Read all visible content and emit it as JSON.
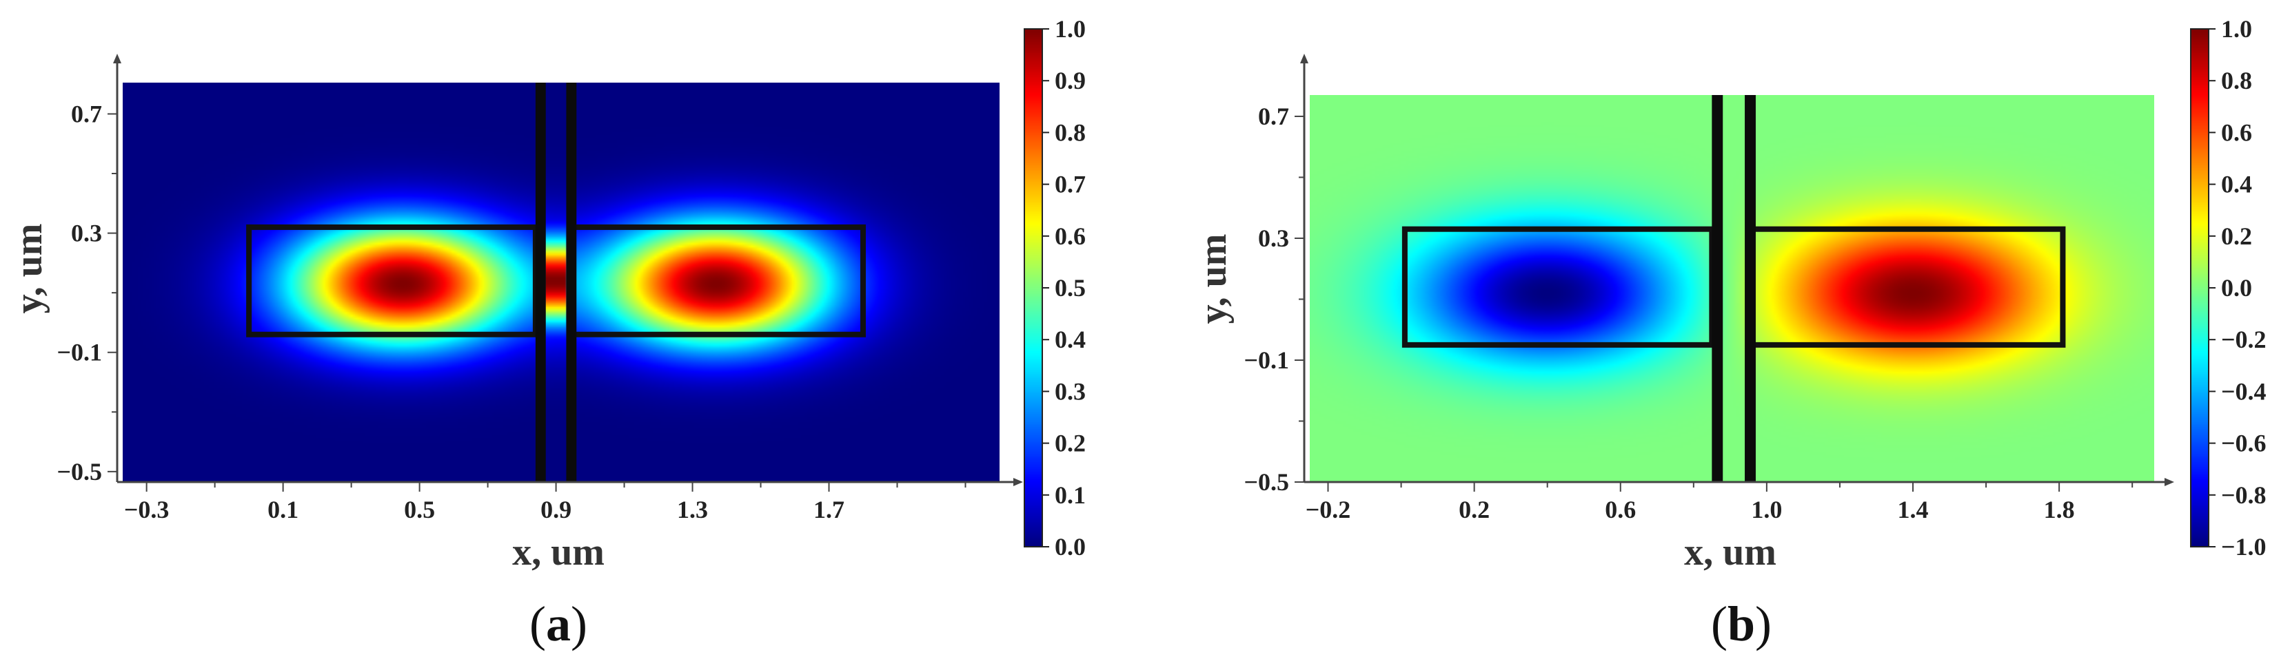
{
  "chart_data": [
    {
      "type": "heatmap",
      "panel_label": "(a)",
      "panel_letter": "a",
      "xlabel": "x, um",
      "ylabel": "y, um",
      "xlim": [
        -0.37,
        2.2
      ],
      "ylim": [
        -0.535,
        0.805
      ],
      "xticks": [
        -0.3,
        0.1,
        0.5,
        0.9,
        1.3,
        1.7
      ],
      "xtick_labels": [
        "−0.3",
        "0.1",
        "0.5",
        "0.9",
        "1.3",
        "1.7"
      ],
      "yticks": [
        -0.5,
        -0.1,
        0.3,
        0.7
      ],
      "ytick_labels": [
        "−0.5",
        "−0.1",
        "0.3",
        "0.7"
      ],
      "colorbar": {
        "min": 0.0,
        "max": 1.0,
        "colormap": "jet",
        "ticks": [
          0.0,
          0.1,
          0.2,
          0.3,
          0.4,
          0.5,
          0.6,
          0.7,
          0.8,
          0.9,
          1.0
        ],
        "tick_labels": [
          "0.0",
          "0.1",
          "0.2",
          "0.3",
          "0.4",
          "0.5",
          "0.6",
          "0.7",
          "0.8",
          "0.9",
          "1.0"
        ]
      },
      "field": {
        "description_free": true,
        "lobes": [
          {
            "x": 0.45,
            "y": 0.13,
            "sx": 0.42,
            "sy": 0.26,
            "amp": 1.0
          },
          {
            "x": 1.37,
            "y": 0.13,
            "sx": 0.42,
            "sy": 0.26,
            "amp": 1.0
          }
        ],
        "slot_peak": {
          "x": 0.9,
          "y": 0.14,
          "sy": 0.16,
          "amp": 1.0
        }
      },
      "waveguides": [
        {
          "x0": 0.0,
          "x1": 0.84,
          "y0": -0.04,
          "y1": 0.32
        },
        {
          "x0": 0.95,
          "x1": 1.8,
          "y0": -0.04,
          "y1": 0.32
        }
      ],
      "walls": [
        {
          "x0": 0.84,
          "x1": 0.87
        },
        {
          "x0": 0.93,
          "x1": 0.96
        }
      ]
    },
    {
      "type": "heatmap",
      "panel_label": "(b)",
      "panel_letter": "b",
      "xlabel": "x, um",
      "ylabel": "y, um",
      "xlim": [
        -0.25,
        2.06
      ],
      "ylim": [
        -0.5,
        0.77
      ],
      "xticks": [
        -0.2,
        0.2,
        0.6,
        1.0,
        1.4,
        1.8
      ],
      "xtick_labels": [
        "−0.2",
        "0.2",
        "0.6",
        "1.0",
        "1.4",
        "1.8"
      ],
      "yticks": [
        -0.5,
        -0.1,
        0.3,
        0.7
      ],
      "ytick_labels": [
        "−0.5",
        "−0.1",
        "0.3",
        "0.7"
      ],
      "colorbar": {
        "min": -1.0,
        "max": 1.0,
        "colormap": "jet",
        "ticks": [
          -1.0,
          -0.8,
          -0.6,
          -0.4,
          -0.2,
          0.0,
          0.2,
          0.4,
          0.6,
          0.8,
          1.0
        ],
        "tick_labels": [
          "−1.0",
          "−0.8",
          "−0.6",
          "−0.4",
          "−0.2",
          "0.0",
          "0.2",
          "0.4",
          "0.6",
          "0.8",
          "1.0"
        ]
      },
      "field": {
        "lobes": [
          {
            "x": 0.4,
            "y": 0.12,
            "sx": 0.45,
            "sy": 0.28,
            "amp": -1.0
          },
          {
            "x": 1.4,
            "y": 0.12,
            "sx": 0.45,
            "sy": 0.28,
            "amp": 1.0
          }
        ]
      },
      "waveguides": [
        {
          "x0": 0.01,
          "x1": 0.85,
          "y0": -0.05,
          "y1": 0.33
        },
        {
          "x0": 0.96,
          "x1": 1.81,
          "y0": -0.05,
          "y1": 0.33
        }
      ],
      "walls": [
        {
          "x0": 0.85,
          "x1": 0.88
        },
        {
          "x0": 0.94,
          "x1": 0.97
        }
      ]
    }
  ]
}
